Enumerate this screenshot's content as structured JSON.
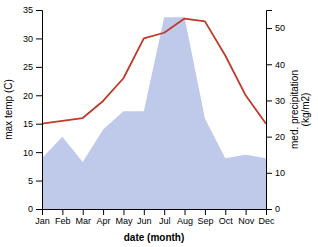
{
  "chart_data": {
    "type": "line",
    "xlabel": "date (month)",
    "ylabel": "max temp (C)",
    "y2label": "med. precipitation\n(kg/m2)",
    "categories": [
      "Jan",
      "Feb",
      "Mar",
      "Apr",
      "May",
      "Jun",
      "Jul",
      "Aug",
      "Sep",
      "Oct",
      "Nov",
      "Dec"
    ],
    "series": [
      {
        "type": "area",
        "axis": "y2",
        "color": "#b8c4e8",
        "values": [
          14,
          20,
          13,
          22,
          27,
          27,
          53,
          53,
          25,
          14,
          15,
          14
        ]
      },
      {
        "type": "line",
        "color": "#c0392b",
        "values": [
          15,
          15.5,
          16,
          19,
          23,
          30,
          31,
          33.5,
          33,
          27,
          20,
          15
        ]
      }
    ],
    "ylim": [
      0,
      35
    ],
    "yticks": [
      0,
      5,
      10,
      15,
      20,
      25,
      30,
      35
    ],
    "y2lim": [
      0,
      55
    ],
    "y2ticks": [
      0,
      10,
      20,
      30,
      40,
      50
    ]
  }
}
